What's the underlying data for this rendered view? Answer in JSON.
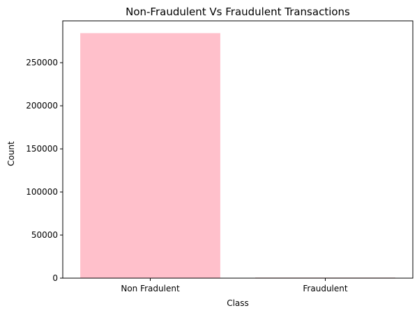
{
  "chart_data": {
    "type": "bar",
    "title": "Non-Fraudulent Vs Fraudulent Transactions",
    "xlabel": "Class",
    "ylabel": "Count",
    "categories": [
      "Non Fradulent",
      "Fraudulent"
    ],
    "values": [
      284315,
      492
    ],
    "bar_colors": [
      "#ffc0cb",
      "#8b0000"
    ],
    "ylim": [
      0,
      298552
    ],
    "yticks": [
      0,
      50000,
      100000,
      150000,
      200000,
      250000
    ],
    "ytick_labels": [
      "0",
      "50000",
      "100000",
      "150000",
      "200000",
      "250000"
    ],
    "grid": false
  }
}
